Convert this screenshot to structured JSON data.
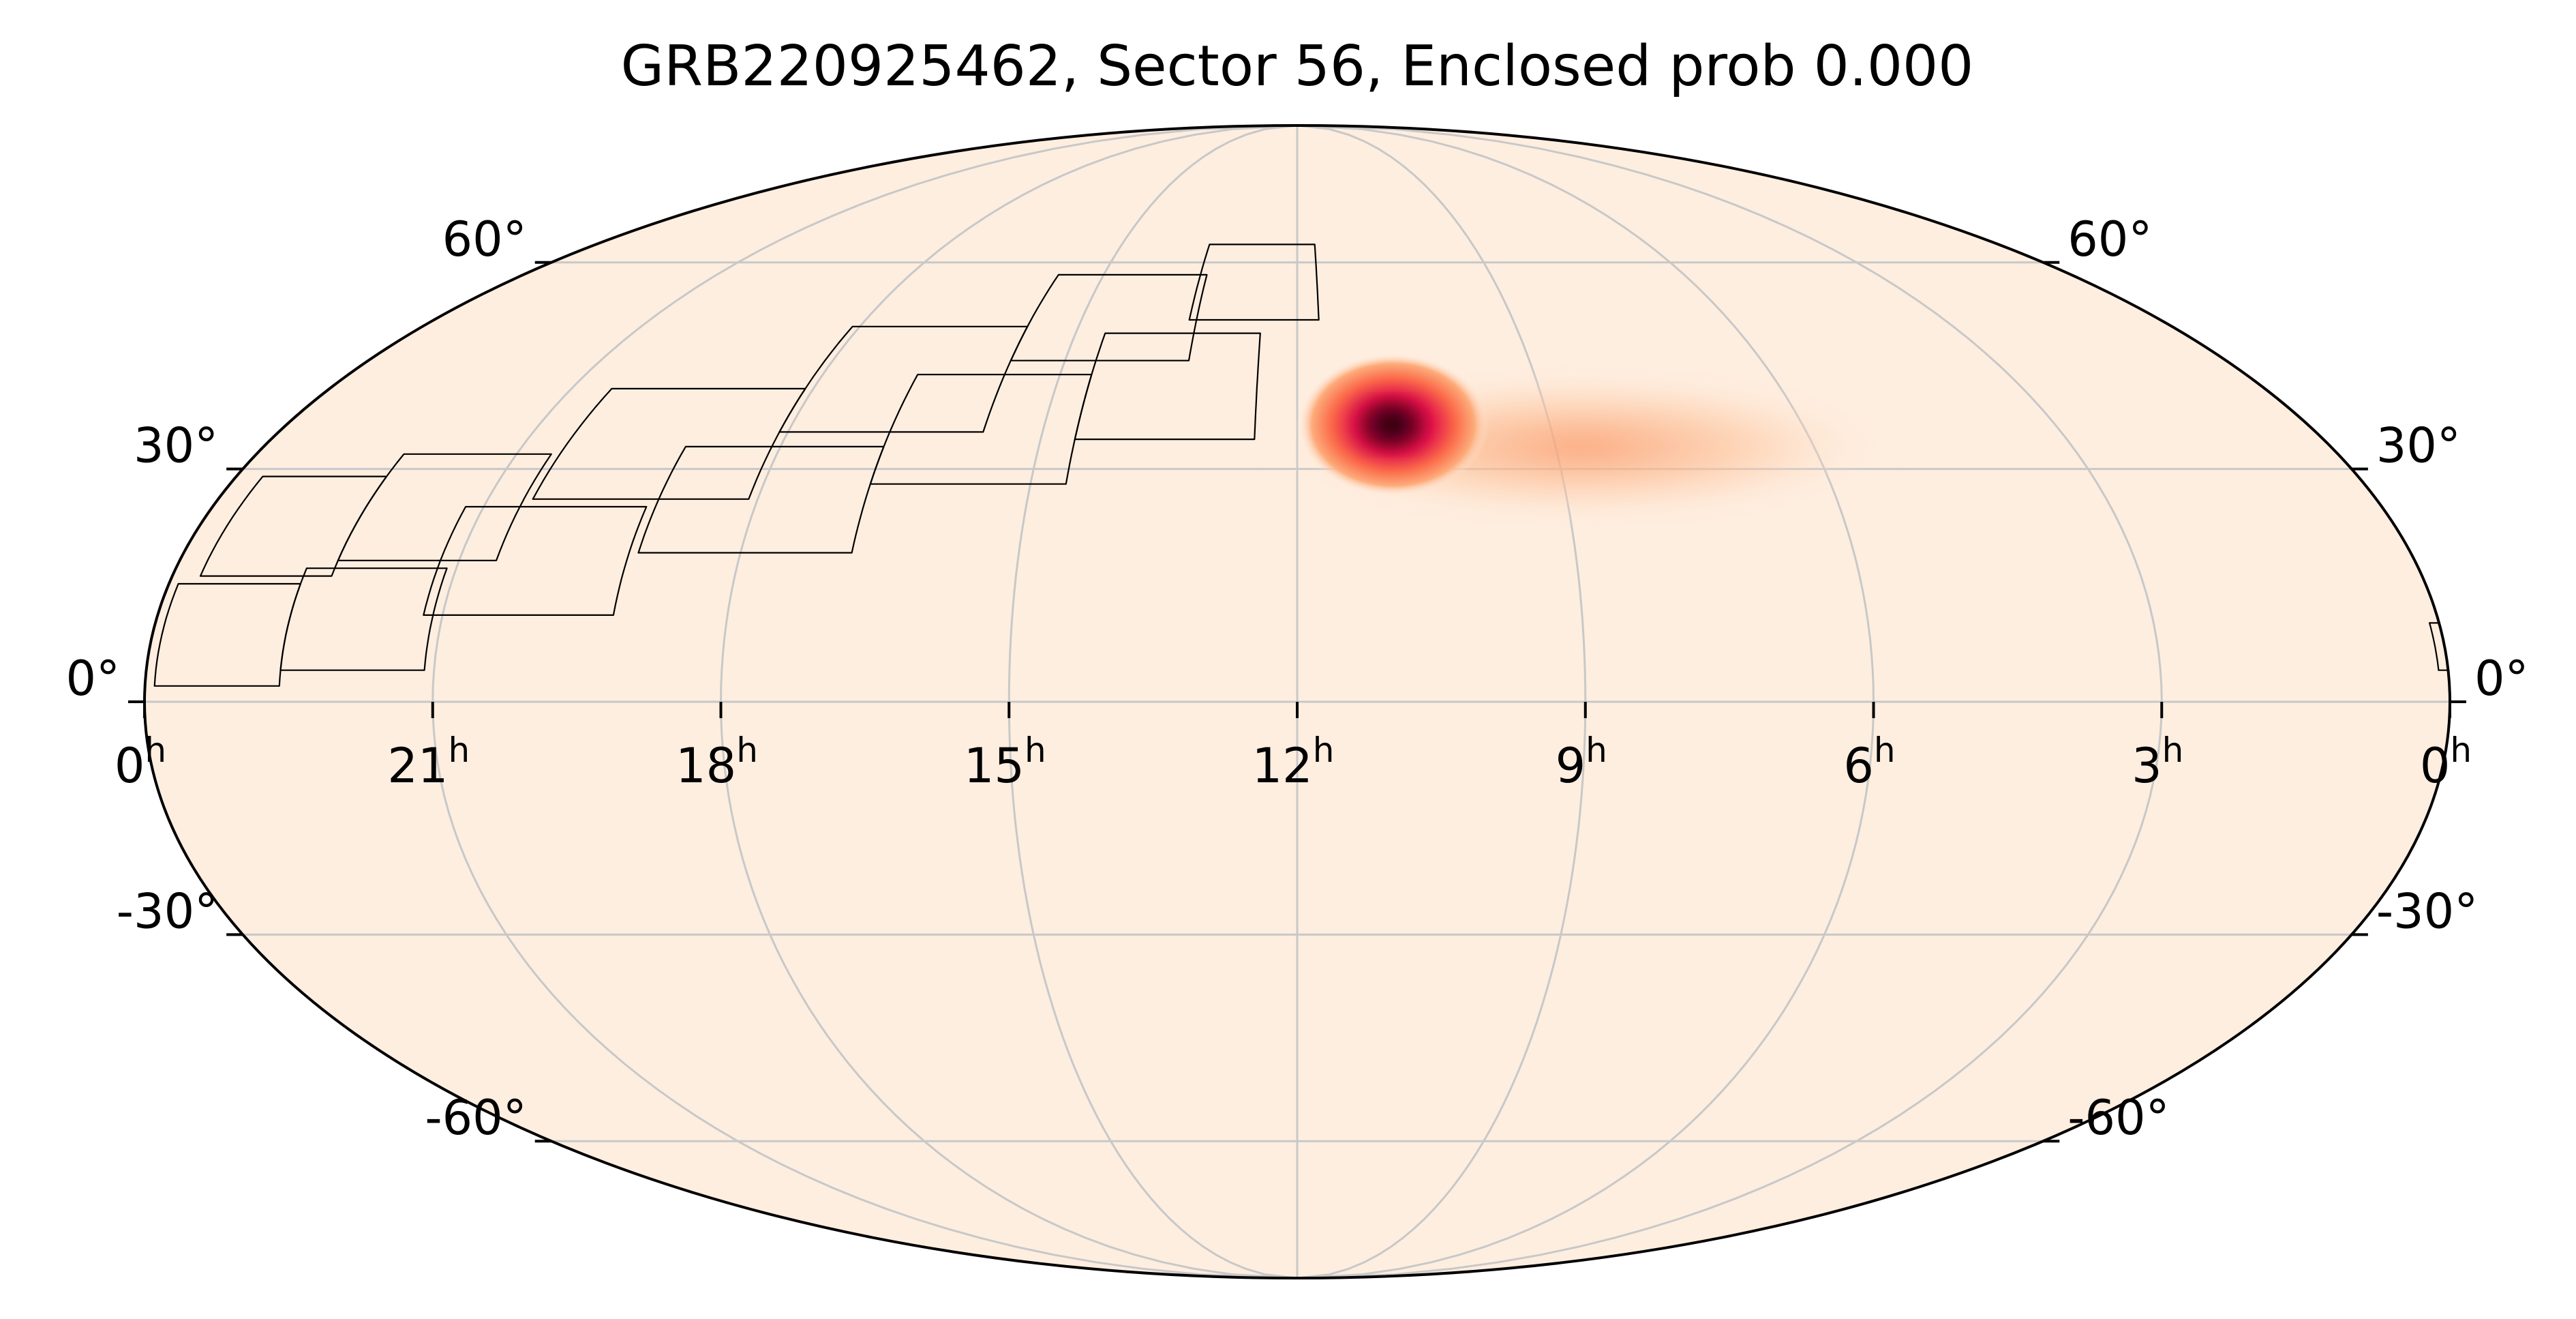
{
  "title": "GRB220925462, Sector 56, Enclosed prob 0.000",
  "projection": "mollweide",
  "ra_direction": "increasing-left",
  "colors": {
    "background": "#feeee0",
    "border": "#000000",
    "grid": "#c8c8c8",
    "footprint": "#000000",
    "hot_low": "#fdbf8f",
    "hot_mid": "#fb6a4a",
    "hot_high": "#e0114a",
    "hot_peak": "#3a0010"
  },
  "ra_ticks": [
    {
      "ra_h": 24,
      "label": "0",
      "sup": "h"
    },
    {
      "ra_h": 21,
      "label": "21",
      "sup": "h"
    },
    {
      "ra_h": 18,
      "label": "18",
      "sup": "h"
    },
    {
      "ra_h": 15,
      "label": "15",
      "sup": "h"
    },
    {
      "ra_h": 12,
      "label": "12",
      "sup": "h"
    },
    {
      "ra_h": 9,
      "label": "9",
      "sup": "h"
    },
    {
      "ra_h": 6,
      "label": "6",
      "sup": "h"
    },
    {
      "ra_h": 3,
      "label": "3",
      "sup": "h"
    },
    {
      "ra_h": 0,
      "label": "0",
      "sup": "h"
    }
  ],
  "dec_ticks_left": [
    {
      "dec": 60,
      "label": "60°"
    },
    {
      "dec": 30,
      "label": "30°"
    },
    {
      "dec": 0,
      "label": "0°"
    },
    {
      "dec": -30,
      "label": "-30°"
    },
    {
      "dec": -60,
      "label": "-60°"
    }
  ],
  "dec_ticks_right": [
    {
      "dec": 60,
      "label": "60°"
    },
    {
      "dec": 30,
      "label": "30°"
    },
    {
      "dec": 0,
      "label": "0°"
    },
    {
      "dec": -30,
      "label": "-30°"
    },
    {
      "dec": -60,
      "label": "-60°"
    }
  ],
  "grid": {
    "ra_step_h": 3,
    "dec_lines": [
      -60,
      -30,
      0,
      30,
      60
    ]
  },
  "probability_blob": {
    "peak": {
      "ra_h": 10.9,
      "dec": 36
    },
    "tail_end": {
      "ra_h": 7.2,
      "dec": 30
    }
  },
  "footprints": [
    {
      "ra0_h": 23.9,
      "ra1_h": 22.6,
      "dec0": 2,
      "dec1": 15
    },
    {
      "ra0_h": 23.7,
      "ra1_h": 22.3,
      "dec0": 16,
      "dec1": 29
    },
    {
      "ra0_h": 22.6,
      "ra1_h": 21.1,
      "dec0": 4,
      "dec1": 17
    },
    {
      "ra0_h": 22.3,
      "ra1_h": 20.6,
      "dec0": 18,
      "dec1": 32
    },
    {
      "ra0_h": 21.2,
      "ra1_h": 19.2,
      "dec0": 11,
      "dec1": 25
    },
    {
      "ra0_h": 20.5,
      "ra1_h": 18.1,
      "dec0": 26,
      "dec1": 41
    },
    {
      "ra0_h": 19.1,
      "ra1_h": 16.8,
      "dec0": 19,
      "dec1": 33
    },
    {
      "ra0_h": 18.1,
      "ra1_h": 15.7,
      "dec0": 35,
      "dec1": 50
    },
    {
      "ra0_h": 16.8,
      "ra1_h": 14.6,
      "dec0": 28,
      "dec1": 43
    },
    {
      "ra0_h": 15.7,
      "ra1_h": 13.4,
      "dec0": 45,
      "dec1": 58
    },
    {
      "ra0_h": 14.6,
      "ra1_h": 12.5,
      "dec0": 34,
      "dec1": 49
    },
    {
      "ra0_h": 13.5,
      "ra1_h": 11.7,
      "dec0": 51,
      "dec1": 63
    }
  ],
  "edge_fragment": {
    "ra0_h": 0.1,
    "ra1_h": 0.0,
    "dec0": 4,
    "dec1": 10
  }
}
